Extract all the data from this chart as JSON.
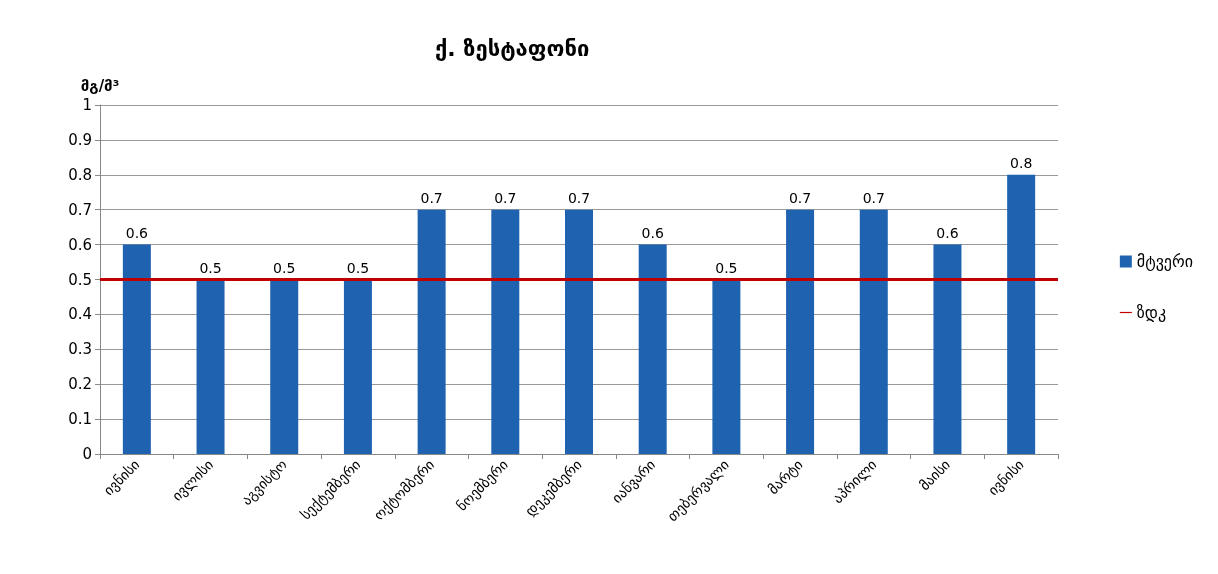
{
  "chart_data": {
    "type": "bar",
    "title": "ქ. ზესტაფონი",
    "ylabel": "მგ/მ³",
    "categories": [
      "ივნისი",
      "ივლისი",
      "აგვისტო",
      "სექტემბერი",
      "ოქტომბერი",
      "ნოემბერი",
      "დეკემბერი",
      "იანვარი",
      "თებერვალი",
      "მარტი",
      "აპრილი",
      "მაისი",
      "ივნისი"
    ],
    "series": [
      {
        "name": "მტვერი",
        "color": "#1f63b0",
        "values": [
          0.6,
          0.5,
          0.5,
          0.5,
          0.7,
          0.7,
          0.7,
          0.6,
          0.5,
          0.7,
          0.7,
          0.6,
          0.8
        ]
      }
    ],
    "ref_lines": [
      {
        "axis": "y",
        "value": 0.5,
        "label": "ზდკ",
        "color": "#c00000"
      }
    ],
    "ylim": [
      0,
      1
    ],
    "yticks": [
      0,
      0.1,
      0.2,
      0.3,
      0.4,
      0.5,
      0.6,
      0.7,
      0.8,
      0.9,
      1
    ],
    "grid": "y",
    "legend": "right",
    "data_labels": true
  }
}
